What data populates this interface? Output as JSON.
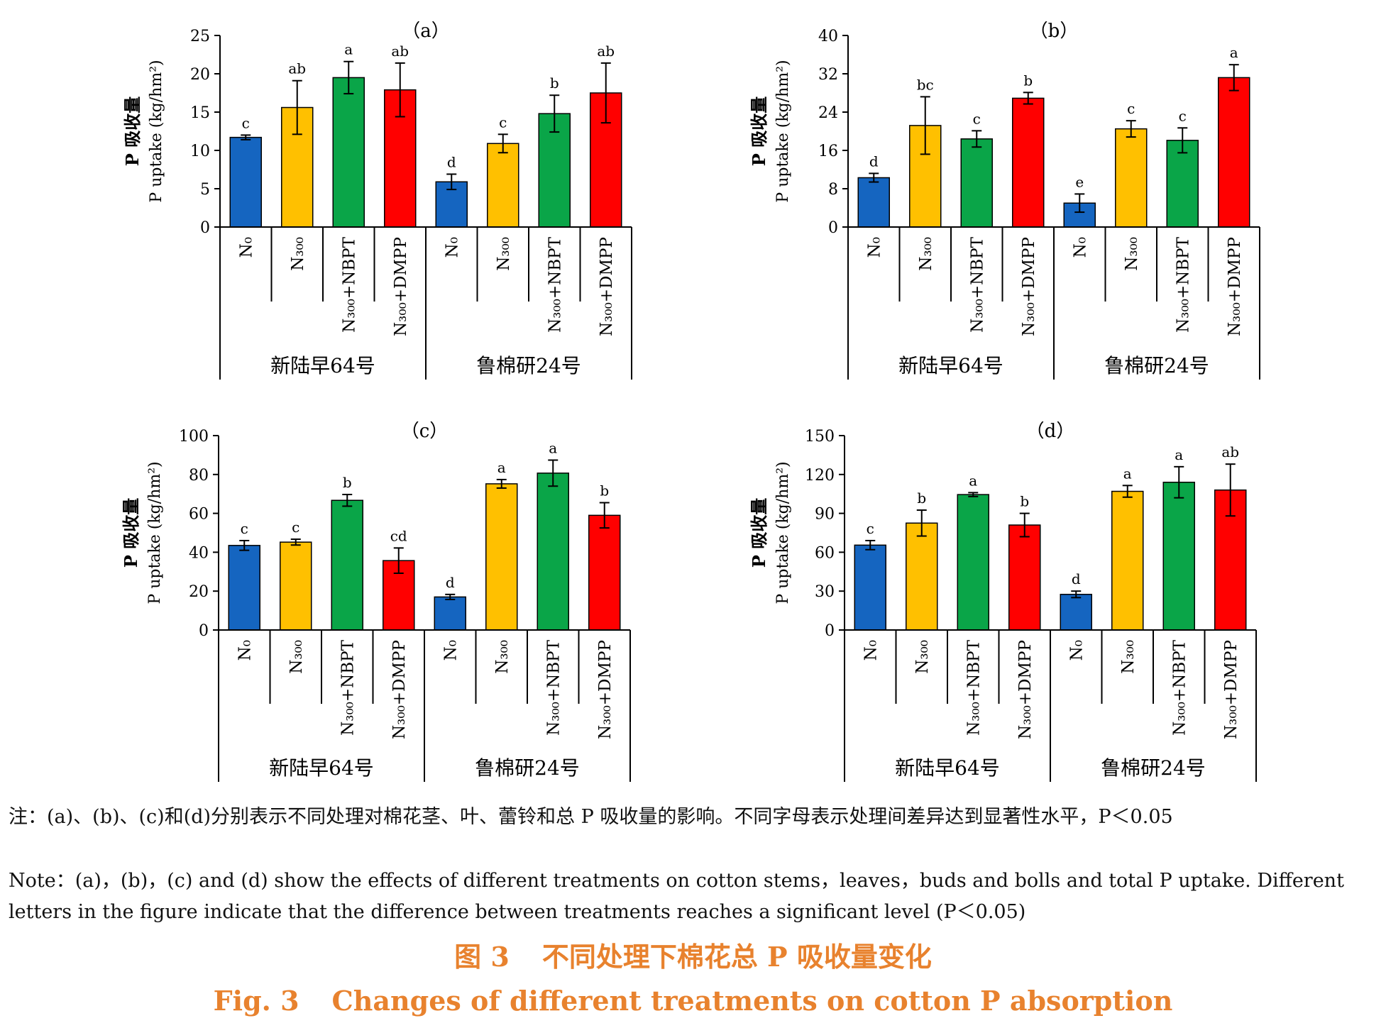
{
  "chart_data": [
    {
      "type": "bar",
      "panel": "（a）",
      "ylabel_zh": "P 吸收量",
      "ylabel_en": "P uptake (kg/hm²)",
      "ylim": [
        0,
        25
      ],
      "yticks": [
        0,
        5,
        10,
        15,
        20,
        25
      ],
      "groups": [
        "新陆早64号",
        "鲁棉研24号"
      ],
      "categories": [
        "N₀",
        "N₃₀₀",
        "N₃₀₀+NBPT",
        "N₃₀₀+DMPP",
        "N₀",
        "N₃₀₀",
        "N₃₀₀+NBPT",
        "N₃₀₀+DMPP"
      ],
      "values": [
        11.7,
        15.6,
        19.5,
        17.9,
        5.9,
        10.9,
        14.8,
        17.5
      ],
      "errors": [
        0.3,
        3.5,
        2.1,
        3.5,
        1.0,
        1.2,
        2.4,
        3.9
      ],
      "letters": [
        "c",
        "ab",
        "a",
        "ab",
        "d",
        "c",
        "b",
        "ab"
      ]
    },
    {
      "type": "bar",
      "panel": "（b）",
      "ylabel_zh": "P 吸收量",
      "ylabel_en": "P uptake (kg/hm²)",
      "ylim": [
        0,
        40
      ],
      "yticks": [
        0,
        8,
        16,
        24,
        32,
        40
      ],
      "groups": [
        "新陆早64号",
        "鲁棉研24号"
      ],
      "categories": [
        "N₀",
        "N₃₀₀",
        "N₃₀₀+NBPT",
        "N₃₀₀+DMPP",
        "N₀",
        "N₃₀₀",
        "N₃₀₀+NBPT",
        "N₃₀₀+DMPP"
      ],
      "values": [
        10.3,
        21.2,
        18.4,
        26.9,
        5.0,
        20.5,
        18.1,
        31.2
      ],
      "errors": [
        0.9,
        6.0,
        1.7,
        1.2,
        1.9,
        1.7,
        2.6,
        2.7
      ],
      "letters": [
        "d",
        "bc",
        "c",
        "b",
        "e",
        "c",
        "c",
        "a"
      ]
    },
    {
      "type": "bar",
      "panel": "（c）",
      "ylabel_zh": "P 吸收量",
      "ylabel_en": "P uptake (kg/hm²)",
      "ylim": [
        0,
        100
      ],
      "yticks": [
        0,
        20,
        40,
        60,
        80,
        100
      ],
      "groups": [
        "新陆早64号",
        "鲁棉研24号"
      ],
      "categories": [
        "N₀",
        "N₃₀₀",
        "N₃₀₀+NBPT",
        "N₃₀₀+DMPP",
        "N₀",
        "N₃₀₀",
        "N₃₀₀+NBPT",
        "N₃₀₀+DMPP"
      ],
      "values": [
        43.5,
        45.2,
        66.7,
        35.7,
        17.0,
        75.2,
        80.7,
        59.0
      ],
      "errors": [
        2.5,
        1.5,
        3.0,
        6.5,
        1.3,
        2.2,
        6.7,
        6.5
      ],
      "letters": [
        "c",
        "c",
        "b",
        "cd",
        "d",
        "a",
        "a",
        "b"
      ]
    },
    {
      "type": "bar",
      "panel": "（d）",
      "ylabel_zh": "P 吸收量",
      "ylabel_en": "P uptake (kg/hm²)",
      "ylim": [
        0,
        150
      ],
      "yticks": [
        0,
        30,
        60,
        90,
        120,
        150
      ],
      "groups": [
        "新陆早64号",
        "鲁棉研24号"
      ],
      "categories": [
        "N₀",
        "N₃₀₀",
        "N₃₀₀+NBPT",
        "N₃₀₀+DMPP",
        "N₀",
        "N₃₀₀",
        "N₃₀₀+NBPT",
        "N₃₀₀+DMPP"
      ],
      "values": [
        65.5,
        82.5,
        104.5,
        81.0,
        27.5,
        107.0,
        114.0,
        108.0
      ],
      "errors": [
        3.5,
        10.0,
        1.5,
        9.0,
        2.5,
        4.5,
        12.0,
        20.0
      ],
      "letters": [
        "c",
        "b",
        "a",
        "b",
        "d",
        "a",
        "a",
        "ab"
      ]
    }
  ],
  "colors": [
    "#1565c0",
    "#ffc000",
    "#0aa548",
    "#ff0000"
  ],
  "note_zh": "注：(a)、(b)、(c)和(d)分别表示不同处理对棉花茎、叶、蕾铃和总 P 吸收量的影响。不同字母表示处理间差异达到显著性水平，P＜0.05",
  "note_en": "Note：(a)，(b)，(c) and (d) show the effects of different treatments on cotton stems，leaves，buds and bolls and total P uptake. Different letters in the figure indicate that the difference between treatments reaches a significant level (P＜0.05)",
  "caption_zh_num": "图 3",
  "caption_zh_text": "不同处理下棉花总 P 吸收量变化",
  "caption_en_num": "Fig. 3",
  "caption_en_text": "Changes of different treatments on cotton P absorption"
}
